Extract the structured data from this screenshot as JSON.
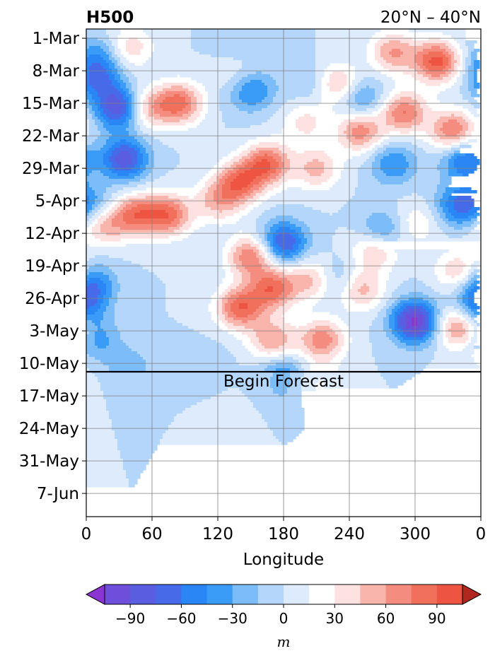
{
  "chart_data": {
    "type": "heatmap",
    "title_left": "H500",
    "title_right": "20°N – 40°N",
    "xlabel": "Longitude",
    "x_ticks": [
      "0",
      "60",
      "120",
      "180",
      "240",
      "300",
      "0"
    ],
    "x_tick_values": [
      0,
      60,
      120,
      180,
      240,
      300,
      360
    ],
    "xlim": [
      0,
      360
    ],
    "y_ticks": [
      "1-Mar",
      "8-Mar",
      "15-Mar",
      "22-Mar",
      "29-Mar",
      "5-Apr",
      "12-Apr",
      "19-Apr",
      "26-Apr",
      "3-May",
      "10-May",
      "17-May",
      "24-May",
      "31-May",
      "7-Jun"
    ],
    "y_tick_days": [
      0,
      7,
      14,
      21,
      28,
      35,
      42,
      49,
      56,
      63,
      70,
      77,
      84,
      91,
      98
    ],
    "ylim_days": [
      -2,
      103
    ],
    "forecast_day": 71.8,
    "forecast_label": "Begin Forecast",
    "grid": true,
    "colorbar": {
      "label": "m",
      "ticks": [
        "−90",
        "−60",
        "−30",
        "0",
        "30",
        "60",
        "90"
      ],
      "tick_values": [
        -90,
        -60,
        -30,
        0,
        30,
        60,
        90
      ],
      "levels": [
        -105,
        -90,
        -75,
        -60,
        -45,
        -30,
        -15,
        0,
        15,
        30,
        45,
        60,
        75,
        90,
        105
      ],
      "colors": [
        "#8b35d3",
        "#6e4fdb",
        "#5a5de0",
        "#466ae8",
        "#2a86f5",
        "#3b9cf7",
        "#7bbcf9",
        "#b4d6fb",
        "#ddebfd",
        "#ffffff",
        "#fde2e1",
        "#f9b5ab",
        "#f48d7f",
        "#f0705c",
        "#ee5442",
        "#dd3c30",
        "#cf3930",
        "#c02f29",
        "#b1271f"
      ],
      "extend": "both"
    },
    "anomaly_centers": [
      {
        "lon": 320,
        "day": 5,
        "value": 95
      },
      {
        "lon": 280,
        "day": 3,
        "value": 60
      },
      {
        "lon": 335,
        "day": 20,
        "value": 80
      },
      {
        "lon": 290,
        "day": 16,
        "value": 75
      },
      {
        "lon": 250,
        "day": 20,
        "value": 70
      },
      {
        "lon": 230,
        "day": 10,
        "value": 55
      },
      {
        "lon": 200,
        "day": 18,
        "value": 35
      },
      {
        "lon": 85,
        "day": 14,
        "value": 80
      },
      {
        "lon": 55,
        "day": 15,
        "value": 55
      },
      {
        "lon": 40,
        "day": 2,
        "value": 40
      },
      {
        "lon": 140,
        "day": 8,
        "value": 25
      },
      {
        "lon": 165,
        "day": 27,
        "value": 85
      },
      {
        "lon": 140,
        "day": 31,
        "value": 80
      },
      {
        "lon": 120,
        "day": 35,
        "value": 50
      },
      {
        "lon": 45,
        "day": 38,
        "value": 75
      },
      {
        "lon": 75,
        "day": 38,
        "value": 80
      },
      {
        "lon": 15,
        "day": 40,
        "value": 55
      },
      {
        "lon": 210,
        "day": 28,
        "value": 50
      },
      {
        "lon": 265,
        "day": 45,
        "value": 65
      },
      {
        "lon": 300,
        "day": 40,
        "value": 30
      },
      {
        "lon": 150,
        "day": 47,
        "value": 75
      },
      {
        "lon": 170,
        "day": 54,
        "value": 80
      },
      {
        "lon": 140,
        "day": 58,
        "value": 85
      },
      {
        "lon": 205,
        "day": 52,
        "value": 50
      },
      {
        "lon": 250,
        "day": 54,
        "value": 55
      },
      {
        "lon": 215,
        "day": 65,
        "value": 70
      },
      {
        "lon": 170,
        "day": 65,
        "value": 60
      },
      {
        "lon": 340,
        "day": 62,
        "value": 75
      },
      {
        "lon": 340,
        "day": 50,
        "value": 45
      },
      {
        "lon": 210,
        "day": 75,
        "value": 40
      },
      {
        "lon": 230,
        "day": 88,
        "value": 12
      },
      {
        "lon": 140,
        "day": 82,
        "value": 10
      },
      {
        "lon": 345,
        "day": 74,
        "value": 15
      },
      {
        "lon": 10,
        "day": 4,
        "value": -40
      },
      {
        "lon": 10,
        "day": 9,
        "value": -55
      },
      {
        "lon": 30,
        "day": 15,
        "value": -90
      },
      {
        "lon": 35,
        "day": 26,
        "value": -85
      },
      {
        "lon": 140,
        "day": 3,
        "value": -10
      },
      {
        "lon": 205,
        "day": 10,
        "value": -20
      },
      {
        "lon": 150,
        "day": 11,
        "value": -55
      },
      {
        "lon": 250,
        "day": 13,
        "value": -45
      },
      {
        "lon": 280,
        "day": 27,
        "value": -45
      },
      {
        "lon": 345,
        "day": 26,
        "value": -65
      },
      {
        "lon": 340,
        "day": 36,
        "value": -60
      },
      {
        "lon": 5,
        "day": 36,
        "value": -40
      },
      {
        "lon": 270,
        "day": 42,
        "value": -60
      },
      {
        "lon": 180,
        "day": 44,
        "value": -80
      },
      {
        "lon": 300,
        "day": 61,
        "value": -110
      },
      {
        "lon": 355,
        "day": 58,
        "value": -60
      },
      {
        "lon": 5,
        "day": 53,
        "value": -55
      },
      {
        "lon": 10,
        "day": 65,
        "value": -35
      },
      {
        "lon": 40,
        "day": 71,
        "value": -25
      },
      {
        "lon": 180,
        "day": 72,
        "value": -40
      },
      {
        "lon": 230,
        "day": 52,
        "value": -30
      },
      {
        "lon": 110,
        "day": 70,
        "value": -10
      },
      {
        "lon": 180,
        "day": 77,
        "value": -25
      }
    ]
  }
}
